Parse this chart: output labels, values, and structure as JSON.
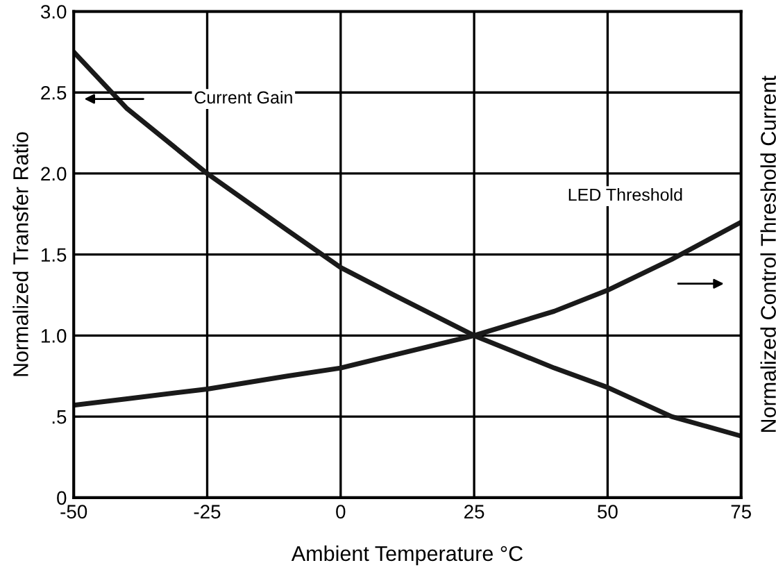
{
  "chart_data": {
    "type": "line",
    "xlabel": "Ambient Temperature °C",
    "ylabel": "Normalized Transfer Ratio",
    "y2label": "Normalized Control Threshold Current",
    "x": [
      -50,
      -40,
      -25,
      -10,
      0,
      10,
      25,
      40,
      50,
      62,
      75
    ],
    "series": [
      {
        "color": "#1a1a1a",
        "values": [
          2.75,
          2.4,
          2.0,
          1.65,
          1.42,
          1.25,
          1.0,
          0.8,
          0.68,
          0.5,
          0.38
        ]
      },
      {
        "color": "#1a1a1a",
        "values": [
          0.57,
          0.61,
          0.67,
          0.75,
          0.8,
          0.88,
          1.0,
          1.15,
          1.28,
          1.47,
          1.7
        ]
      }
    ],
    "annotations": [
      "Current Gain",
      "LED Threshold"
    ],
    "xlim": [
      -50,
      75
    ],
    "ylim": [
      0,
      3
    ],
    "xticks": [
      -50,
      -25,
      0,
      25,
      50,
      75
    ],
    "yticks": [
      0,
      {
        "value": 0.5,
        "label": ".5"
      },
      {
        "value": 1,
        "label": "1.0"
      },
      1.5,
      {
        "value": 2,
        "label": "2.0"
      },
      2.5,
      {
        "value": 3,
        "label": "3.0"
      }
    ],
    "grid": true,
    "marker": "none",
    "line_style": "solid"
  }
}
